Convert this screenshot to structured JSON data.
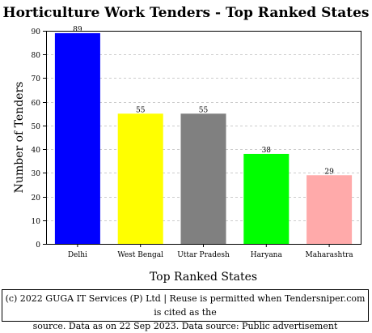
{
  "chart_data": {
    "type": "bar",
    "title": "Horticulture Work Tenders - Top Ranked States",
    "xlabel": "Top Ranked States",
    "ylabel": "Number of Tenders",
    "categories": [
      "Delhi",
      "West Bengal",
      "Uttar Pradesh",
      "Haryana",
      "Maharashtra"
    ],
    "values": [
      89,
      55,
      55,
      38,
      29
    ],
    "colors": [
      "#0000ff",
      "#ffff00",
      "#808080",
      "#00ff00",
      "#ffaaaa"
    ],
    "ylim": [
      0,
      90
    ],
    "yticks": [
      0,
      10,
      20,
      30,
      40,
      50,
      60,
      70,
      80,
      90
    ],
    "grid": true,
    "legend": "none"
  },
  "footer": {
    "line1": "(c) 2022 GUGA IT Services (P) Ltd | Reuse is permitted when Tendersniper.com is cited as the",
    "line2": "source. Data as on 22 Sep 2023. Data source: Public advertisement"
  }
}
